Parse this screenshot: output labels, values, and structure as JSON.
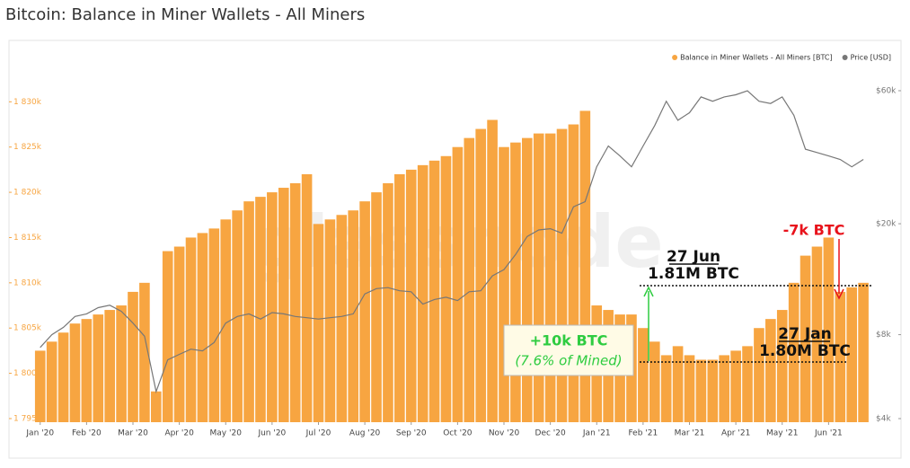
{
  "chart_data": {
    "type": "bar",
    "title": "Bitcoin: Balance in Miner Wallets - All Miners",
    "watermark": "glassnode",
    "x": [
      0,
      0.25,
      0.5,
      0.75,
      1,
      1.25,
      1.5,
      1.75,
      2,
      2.25,
      2.5,
      2.75,
      3,
      3.25,
      3.5,
      3.75,
      4,
      4.25,
      4.5,
      4.75,
      5,
      5.25,
      5.5,
      5.75,
      6,
      6.25,
      6.5,
      6.75,
      7,
      7.25,
      7.5,
      7.75,
      8,
      8.25,
      8.5,
      8.75,
      9,
      9.25,
      9.5,
      9.75,
      10,
      10.25,
      10.5,
      10.75,
      11,
      11.25,
      11.5,
      11.75,
      12,
      12.25,
      12.5,
      12.75,
      13,
      13.25,
      13.5,
      13.75,
      14,
      14.25,
      14.5,
      14.75,
      15,
      15.25,
      15.5,
      15.75,
      16,
      16.25,
      16.5,
      16.75,
      17,
      17.25,
      17.5,
      17.75
    ],
    "xlim": [
      -0.15,
      18
    ],
    "xticks": [
      {
        "value": 0,
        "label": "Jan '20"
      },
      {
        "value": 1,
        "label": "Feb '20"
      },
      {
        "value": 2,
        "label": "Mar '20"
      },
      {
        "value": 3,
        "label": "Apr '20"
      },
      {
        "value": 4,
        "label": "May '20"
      },
      {
        "value": 5,
        "label": "Jun '20"
      },
      {
        "value": 6,
        "label": "Jul '20"
      },
      {
        "value": 7,
        "label": "Aug '20"
      },
      {
        "value": 8,
        "label": "Sep '20"
      },
      {
        "value": 9,
        "label": "Oct '20"
      },
      {
        "value": 10,
        "label": "Nov '20"
      },
      {
        "value": 11,
        "label": "Dec '20"
      },
      {
        "value": 12,
        "label": "Jan '21"
      },
      {
        "value": 13,
        "label": "Feb '21"
      },
      {
        "value": 14,
        "label": "Mar '21"
      },
      {
        "value": 15,
        "label": "Apr '21"
      },
      {
        "value": 16,
        "label": "May '21"
      },
      {
        "value": 17,
        "label": "Jun '21"
      }
    ],
    "ylim": [
      1794600,
      1834300
    ],
    "yticks": [
      {
        "value": 1795000,
        "label": "1 795k"
      },
      {
        "value": 1800000,
        "label": "1 800k"
      },
      {
        "value": 1805000,
        "label": "1 805k"
      },
      {
        "value": 1810000,
        "label": "1 810k"
      },
      {
        "value": 1815000,
        "label": "1 815k"
      },
      {
        "value": 1820000,
        "label": "1 820k"
      },
      {
        "value": 1825000,
        "label": "1 825k"
      },
      {
        "value": 1830000,
        "label": "1 830k"
      }
    ],
    "y2lim": [
      3883,
      75500
    ],
    "y2scale": "log",
    "y2ticks": [
      {
        "value": 4000,
        "label": "$4k"
      },
      {
        "value": 8000,
        "label": "$8k"
      },
      {
        "value": 20000,
        "label": "$20k"
      },
      {
        "value": 60000,
        "label": "$60k"
      }
    ],
    "series": [
      {
        "name": "Balance in Miner Wallets - All Miners [BTC]",
        "type": "bar",
        "color": "#f7a541",
        "values": [
          1802500,
          1803500,
          1804500,
          1805500,
          1806000,
          1806500,
          1807000,
          1807500,
          1809000,
          1810000,
          1798000,
          1813500,
          1814000,
          1815000,
          1815500,
          1816000,
          1817000,
          1818000,
          1819000,
          1819500,
          1820000,
          1820500,
          1821000,
          1822000,
          1816500,
          1817000,
          1817500,
          1818000,
          1819000,
          1820000,
          1821000,
          1822000,
          1822500,
          1823000,
          1823500,
          1824000,
          1825000,
          1826000,
          1827000,
          1828000,
          1825000,
          1825500,
          1826000,
          1826500,
          1826500,
          1827000,
          1827500,
          1829000,
          1807500,
          1807000,
          1806500,
          1806500,
          1805000,
          1803500,
          1802000,
          1803000,
          1802000,
          1801500,
          1801500,
          1802000,
          1802500,
          1803000,
          1805000,
          1806000,
          1807000,
          1810000,
          1813000,
          1814000,
          1815000,
          1809000,
          1809500,
          1810000
        ]
      },
      {
        "name": "Price [USD]",
        "type": "line",
        "axis": "y2",
        "color": "#777777",
        "values": [
          7200,
          8000,
          8500,
          9300,
          9500,
          10000,
          10200,
          9700,
          8800,
          7900,
          5000,
          6500,
          6800,
          7100,
          7000,
          7500,
          8800,
          9300,
          9500,
          9100,
          9600,
          9500,
          9300,
          9200,
          9100,
          9200,
          9300,
          9500,
          11200,
          11700,
          11800,
          11500,
          11400,
          10300,
          10700,
          10900,
          10600,
          11400,
          11500,
          13000,
          13700,
          15500,
          18000,
          19000,
          19200,
          18500,
          23000,
          24000,
          32000,
          38000,
          35000,
          32000,
          38000,
          45000,
          55000,
          47000,
          50000,
          57000,
          55000,
          57000,
          58000,
          60000,
          55000,
          54000,
          57000,
          49000,
          37000,
          36000,
          35000,
          34000,
          32000,
          34000
        ]
      }
    ],
    "annotations": [
      "27 Jun",
      "1.81M BTC",
      "+10k BTC",
      "(7.6% of Mined)",
      "27 Jan",
      "1.80M BTC",
      "-7k BTC"
    ]
  }
}
